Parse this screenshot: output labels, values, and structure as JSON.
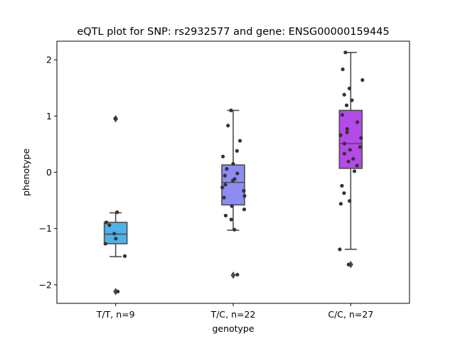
{
  "chart_data": {
    "type": "box",
    "title": "eQTL plot for SNP: rs2932577 and gene: ENSG00000159445",
    "xlabel": "genotype",
    "ylabel": "phenotype",
    "ylim": [
      -2.33,
      2.33
    ],
    "y_ticks": [
      -2,
      -1,
      0,
      1,
      2
    ],
    "y_tick_labels": [
      "−2",
      "−1",
      "0",
      "1",
      "2"
    ],
    "groups": [
      {
        "label": "T/T, n=9",
        "color": "#4fb2e8",
        "box": {
          "whisker_low": -1.5,
          "q1": -1.27,
          "median": -1.1,
          "q3": -0.89,
          "whisker_high": -0.72
        },
        "outliers": [
          0.95,
          -2.12
        ],
        "points": [
          0.96,
          -0.71,
          -0.89,
          -0.94,
          -1.09,
          -1.18,
          -1.27,
          -1.49,
          -2.12
        ]
      },
      {
        "label": "T/C, n=22",
        "color": "#8c8cf5",
        "box": {
          "whisker_low": -1.03,
          "q1": -0.58,
          "median": -0.18,
          "q3": 0.13,
          "whisker_high": 1.1
        },
        "outliers": [
          -1.83
        ],
        "points": [
          1.1,
          0.83,
          0.56,
          0.38,
          0.28,
          0.15,
          0.06,
          -0.02,
          -0.06,
          -0.12,
          -0.15,
          -0.22,
          -0.27,
          -0.33,
          -0.42,
          -0.45,
          -0.6,
          -0.66,
          -0.77,
          -0.84,
          -1.02,
          -1.82
        ]
      },
      {
        "label": "C/C, n=27",
        "color": "#b44ae8",
        "box": {
          "whisker_low": -1.37,
          "q1": 0.07,
          "median": 0.51,
          "q3": 1.1,
          "whisker_high": 2.13
        },
        "outliers": [
          -1.64
        ],
        "points": [
          2.13,
          1.83,
          1.64,
          1.49,
          1.38,
          1.28,
          1.19,
          1.02,
          0.89,
          0.77,
          0.71,
          0.66,
          0.61,
          0.51,
          0.45,
          0.4,
          0.33,
          0.24,
          0.19,
          0.12,
          0.02,
          -0.24,
          -0.37,
          -0.51,
          -0.56,
          -1.37,
          -1.64
        ]
      }
    ]
  }
}
